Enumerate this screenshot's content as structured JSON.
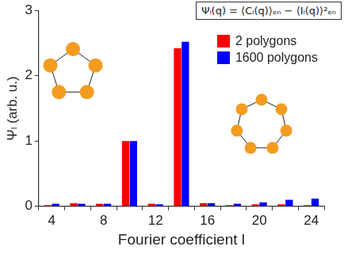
{
  "chart_data": {
    "type": "bar",
    "annotations": [
      "Ψₗ(q) = ⟨Cₗ(q)⟩ₑₙ − ⟨Iₗ(q)⟩²ₑₙ"
    ],
    "x_label": "Fourier coefficient l",
    "y_label": "Ψₗ (arb. u.)",
    "categories": [
      4,
      null,
      8,
      null,
      12,
      null,
      16,
      null,
      20,
      null,
      24
    ],
    "series": [
      {
        "name": "2 polygons",
        "color": "#ff0000",
        "values": [
          0.02,
          0.05,
          0.04,
          1.0,
          0.04,
          2.42,
          0.05,
          0.02,
          0.03,
          0.03,
          0.02
        ]
      },
      {
        "name": "1600 polygons",
        "color": "#0000ff",
        "values": [
          0.04,
          0.04,
          0.04,
          1.0,
          0.03,
          2.52,
          0.05,
          0.04,
          0.06,
          0.1,
          0.12
        ]
      }
    ],
    "ylim": [
      0,
      3
    ],
    "yticks": [
      0,
      1,
      2,
      3
    ],
    "legend": "top-right",
    "grid": false
  }
}
